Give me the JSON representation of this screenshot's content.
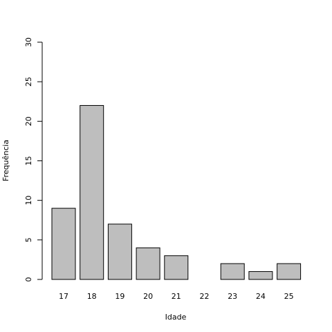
{
  "chart_data": {
    "type": "bar",
    "categories": [
      "17",
      "18",
      "19",
      "20",
      "21",
      "22",
      "23",
      "24",
      "25"
    ],
    "values": [
      9,
      22,
      7,
      4,
      3,
      0,
      2,
      1,
      2
    ],
    "title": "",
    "xlabel": "Idade",
    "ylabel": "Frequência",
    "ylim": [
      0,
      30
    ],
    "yticks": [
      0,
      5,
      10,
      15,
      20,
      25,
      30
    ],
    "grid": false,
    "bar_color": "#bebebe",
    "bar_edge_color": "#000000"
  }
}
